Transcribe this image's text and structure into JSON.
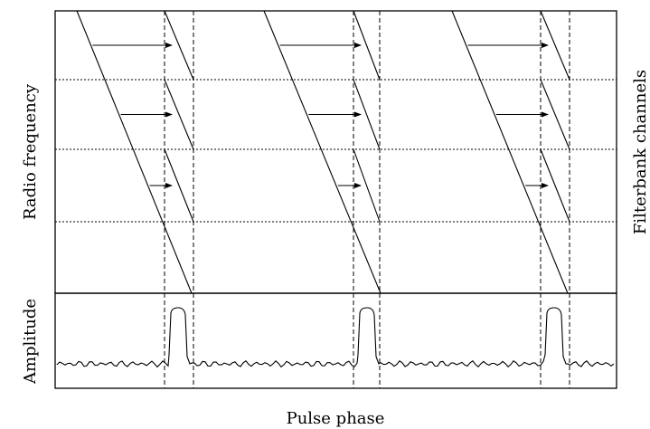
{
  "labels": {
    "y_upper": "Radio frequency",
    "y_lower": "Amplitude",
    "x_bottom": "Pulse phase",
    "y_right": "Filterbank channels"
  },
  "diagram": {
    "pulse_count": 3,
    "filterbank_channel_count": 4,
    "arrows_per_pulse": 3
  }
}
